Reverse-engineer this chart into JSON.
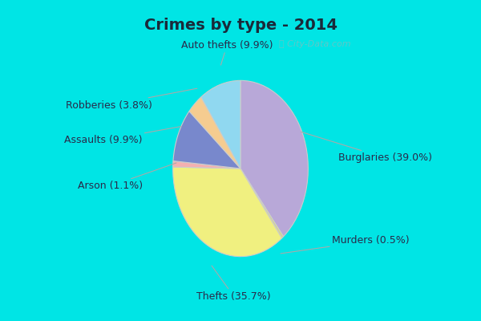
{
  "title": "Crimes by type - 2014",
  "labels": [
    "Burglaries",
    "Murders",
    "Thefts",
    "Arson",
    "Assaults",
    "Robberies",
    "Auto thefts"
  ],
  "values": [
    39.0,
    0.5,
    35.7,
    1.1,
    9.9,
    3.8,
    9.9
  ],
  "colors": [
    "#b8a8d8",
    "#d4d490",
    "#f0f080",
    "#f4b0b0",
    "#7888cc",
    "#f5cc90",
    "#90d8f0"
  ],
  "title_fontsize": 14,
  "label_fontsize": 9,
  "startangle": 90,
  "bg_figure": "#00e5e5",
  "bg_axes": "#d8eed8"
}
